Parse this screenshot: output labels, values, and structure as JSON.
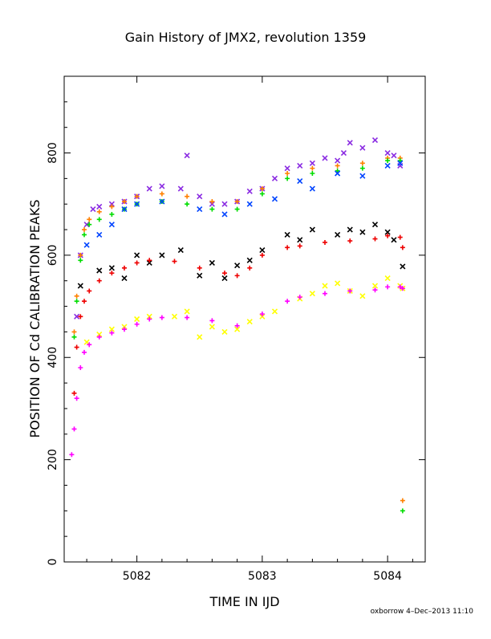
{
  "chart_data": {
    "type": "scatter",
    "title": "Gain History of JMX2, revolution 1359",
    "xlabel": "TIME IN IJD",
    "ylabel": "POSITION OF Cd CALIBRATION PEAKS",
    "xlim": [
      5081.42,
      5084.3
    ],
    "ylim": [
      0,
      950
    ],
    "x_ticks": [
      5082,
      5083,
      5084
    ],
    "x_tick_labels": [
      "5082",
      "5083",
      "5084"
    ],
    "y_ticks": [
      0,
      200,
      400,
      600,
      800
    ],
    "y_tick_labels": [
      "0",
      "200",
      "400",
      "600",
      "800"
    ],
    "grid": false,
    "legend": "none",
    "series": [
      {
        "color": "#8a2be2",
        "marker": "x",
        "x": [
          5081.52,
          5081.55,
          5081.6,
          5081.65,
          5081.7,
          5081.8,
          5081.9,
          5082.0,
          5082.1,
          5082.2,
          5082.35,
          5082.4,
          5082.5,
          5082.6,
          5082.7,
          5082.8,
          5082.9,
          5083.0,
          5083.1,
          5083.2,
          5083.3,
          5083.4,
          5083.5,
          5083.6,
          5083.65,
          5083.7,
          5083.8,
          5083.9,
          5084.0,
          5084.05,
          5084.1
        ],
        "y": [
          480,
          600,
          660,
          690,
          695,
          700,
          705,
          715,
          730,
          735,
          730,
          795,
          715,
          700,
          700,
          705,
          725,
          730,
          750,
          770,
          775,
          780,
          790,
          785,
          800,
          820,
          810,
          825,
          800,
          795,
          775
        ]
      },
      {
        "color": "#ff8000",
        "marker": "+",
        "x": [
          5081.5,
          5081.52,
          5081.55,
          5081.58,
          5081.62,
          5081.7,
          5081.8,
          5081.9,
          5082.0,
          5082.2,
          5082.4,
          5082.6,
          5082.8,
          5083.0,
          5083.2,
          5083.4,
          5083.6,
          5083.8,
          5084.0,
          5084.1
        ],
        "y": [
          450,
          520,
          600,
          650,
          670,
          685,
          695,
          705,
          715,
          720,
          715,
          705,
          705,
          730,
          760,
          770,
          775,
          780,
          790,
          790
        ]
      },
      {
        "color": "#00dd00",
        "marker": "+",
        "x": [
          5081.5,
          5081.52,
          5081.55,
          5081.58,
          5081.62,
          5081.7,
          5081.8,
          5081.9,
          5082.0,
          5082.2,
          5082.4,
          5082.6,
          5082.8,
          5083.0,
          5083.2,
          5083.4,
          5083.6,
          5083.8,
          5084.0,
          5084.1
        ],
        "y": [
          440,
          510,
          590,
          640,
          660,
          670,
          680,
          690,
          700,
          705,
          700,
          690,
          690,
          720,
          750,
          760,
          765,
          770,
          785,
          785
        ]
      },
      {
        "color": "#0044ff",
        "marker": "x",
        "x": [
          5081.6,
          5081.7,
          5081.8,
          5081.9,
          5082.0,
          5082.2,
          5082.5,
          5082.7,
          5082.9,
          5083.1,
          5083.3,
          5083.4,
          5083.6,
          5083.8,
          5084.0,
          5084.1
        ],
        "y": [
          620,
          640,
          660,
          690,
          700,
          705,
          690,
          680,
          700,
          710,
          745,
          730,
          760,
          755,
          775,
          780
        ]
      },
      {
        "color": "#000000",
        "marker": "x",
        "x": [
          5081.55,
          5081.7,
          5081.8,
          5081.9,
          5082.0,
          5082.1,
          5082.2,
          5082.35,
          5082.5,
          5082.6,
          5082.7,
          5082.8,
          5082.9,
          5083.0,
          5083.2,
          5083.3,
          5083.4,
          5083.6,
          5083.7,
          5083.8,
          5083.9,
          5084.0,
          5084.05,
          5084.12
        ],
        "y": [
          540,
          570,
          575,
          555,
          600,
          585,
          600,
          610,
          560,
          585,
          555,
          580,
          590,
          610,
          640,
          630,
          650,
          640,
          650,
          645,
          660,
          645,
          630,
          578
        ]
      },
      {
        "color": "#ee0000",
        "marker": "+",
        "x": [
          5081.5,
          5081.52,
          5081.55,
          5081.58,
          5081.62,
          5081.7,
          5081.8,
          5081.9,
          5082.0,
          5082.1,
          5082.3,
          5082.5,
          5082.7,
          5082.8,
          5082.9,
          5083.0,
          5083.2,
          5083.3,
          5083.5,
          5083.7,
          5083.9,
          5084.0,
          5084.1,
          5084.12
        ],
        "y": [
          330,
          420,
          480,
          510,
          530,
          550,
          565,
          575,
          585,
          590,
          588,
          575,
          565,
          560,
          575,
          600,
          615,
          618,
          625,
          628,
          632,
          638,
          635,
          615
        ]
      },
      {
        "color": "#ffff00",
        "marker": "x",
        "x": [
          5081.6,
          5081.7,
          5081.8,
          5081.9,
          5082.0,
          5082.1,
          5082.3,
          5082.4,
          5082.5,
          5082.6,
          5082.7,
          5082.8,
          5082.9,
          5083.0,
          5083.1,
          5083.3,
          5083.4,
          5083.5,
          5083.6,
          5083.7,
          5083.8,
          5083.9,
          5084.0,
          5084.1,
          5084.12
        ],
        "y": [
          430,
          445,
          455,
          460,
          475,
          480,
          480,
          490,
          440,
          460,
          450,
          455,
          470,
          480,
          490,
          515,
          525,
          540,
          545,
          530,
          520,
          540,
          555,
          540,
          535
        ]
      },
      {
        "color": "#ff00ff",
        "marker": "+",
        "x": [
          5081.48,
          5081.5,
          5081.52,
          5081.55,
          5081.58,
          5081.62,
          5081.7,
          5081.8,
          5081.9,
          5082.0,
          5082.1,
          5082.2,
          5082.4,
          5082.6,
          5082.8,
          5083.0,
          5083.2,
          5083.3,
          5083.5,
          5083.7,
          5083.9,
          5084.0,
          5084.1,
          5084.12
        ],
        "y": [
          210,
          260,
          320,
          380,
          410,
          425,
          440,
          448,
          455,
          465,
          475,
          478,
          478,
          472,
          462,
          485,
          510,
          518,
          525,
          530,
          532,
          538,
          538,
          535
        ]
      },
      {
        "color": "#ff8000",
        "marker": "+",
        "x": [
          5084.12
        ],
        "y": [
          120
        ]
      },
      {
        "color": "#00dd00",
        "marker": "+",
        "x": [
          5084.12
        ],
        "y": [
          100
        ]
      }
    ]
  },
  "footer_text": "oxborrow 4–Dec–2013 11:10"
}
